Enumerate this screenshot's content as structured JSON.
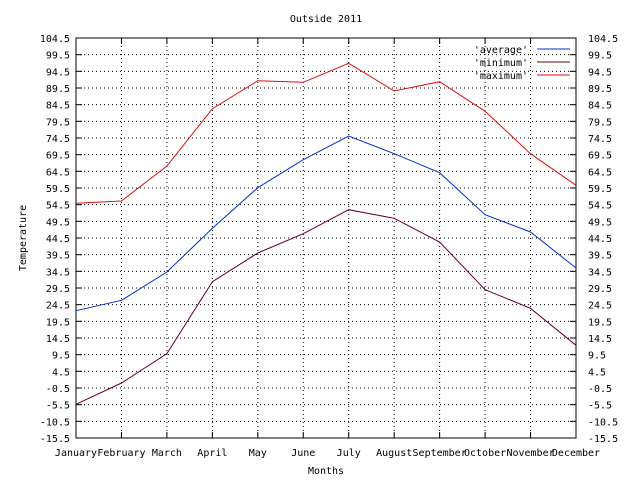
{
  "chart_data": {
    "type": "line",
    "title": "Outside 2011",
    "xlabel": "Months",
    "ylabel": "Temperature",
    "categories": [
      "January",
      "February",
      "March",
      "April",
      "May",
      "June",
      "July",
      "August",
      "September",
      "October",
      "November",
      "December"
    ],
    "y_ticks": [
      "104.5",
      "99.5",
      "94.5",
      "89.5",
      "84.5",
      "79.5",
      "74.5",
      "69.5",
      "64.5",
      "59.5",
      "54.5",
      "49.5",
      "44.5",
      "39.5",
      "34.5",
      "29.5",
      "24.5",
      "19.5",
      "14.5",
      "9.5",
      "4.5",
      "-0.5",
      "-5.5",
      "-10.5",
      "-15.5"
    ],
    "ylim": [
      -15.5,
      104.5
    ],
    "grid": true,
    "legend_position": "top-right",
    "series": [
      {
        "name": "'average'",
        "color": "#0033cc",
        "values": [
          22.7,
          25.8,
          34.3,
          47.4,
          59.6,
          68.0,
          75.1,
          69.8,
          64.1,
          51.5,
          46.3,
          35.5
        ]
      },
      {
        "name": "'minimum'",
        "color": "#660011",
        "values": [
          -5.4,
          1.0,
          9.8,
          31.4,
          40.0,
          45.8,
          53.0,
          50.4,
          43.3,
          29.0,
          23.4,
          12.3
        ]
      },
      {
        "name": "'maximum'",
        "color": "#dd1111",
        "values": [
          54.9,
          55.6,
          66.1,
          83.3,
          91.7,
          91.2,
          96.9,
          88.6,
          91.4,
          82.5,
          69.8,
          60.3
        ]
      }
    ]
  }
}
